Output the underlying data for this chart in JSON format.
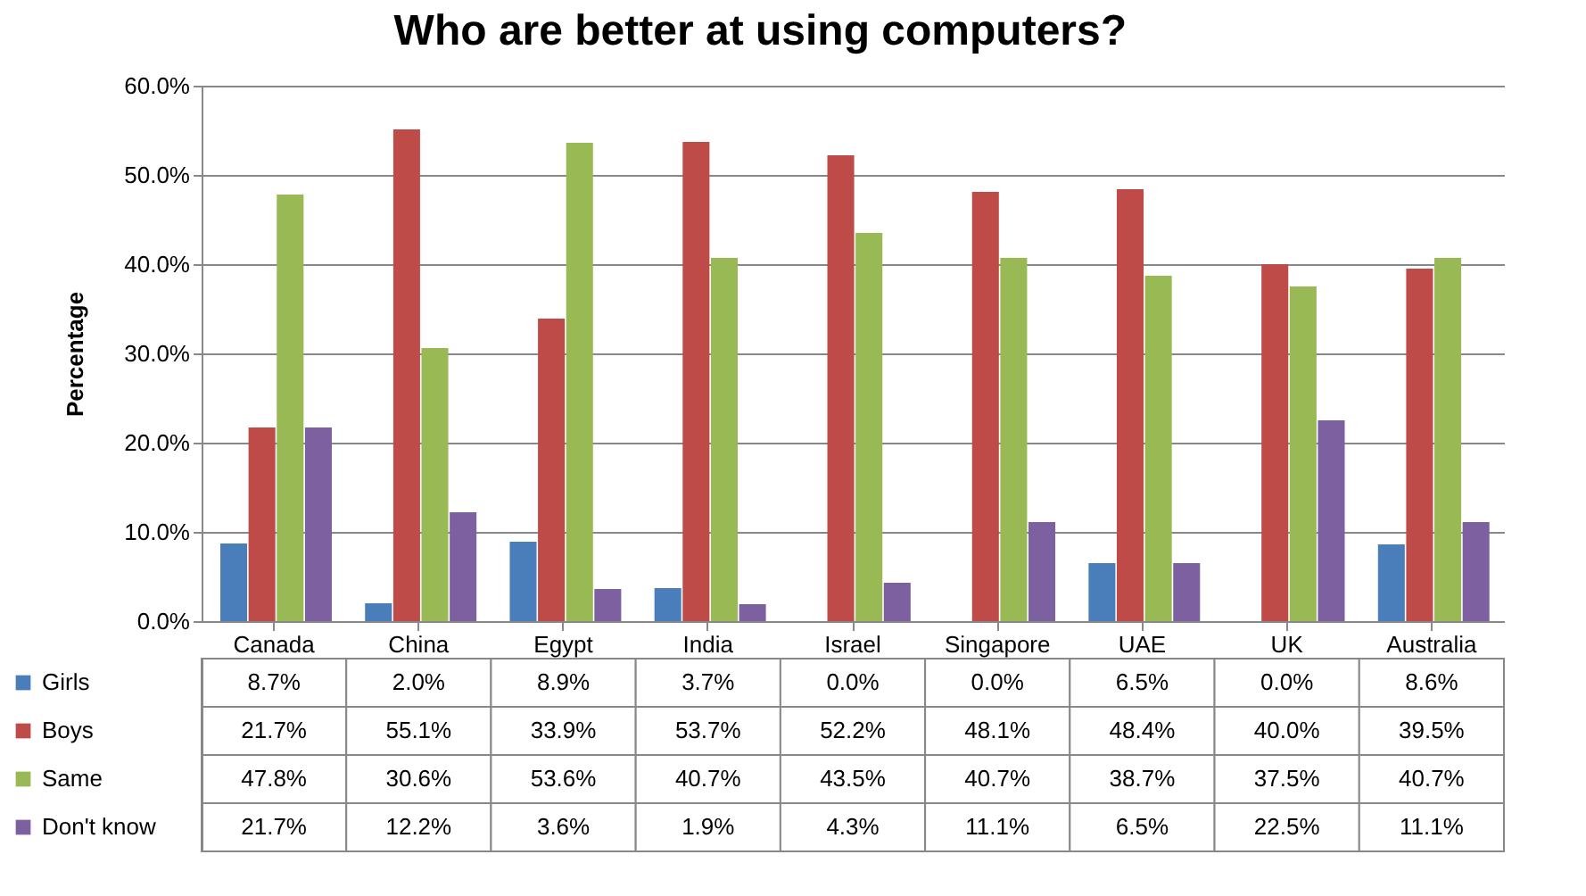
{
  "chart_data": {
    "type": "bar",
    "title": "Who are better at using computers?",
    "ylabel": "Percentage",
    "categories": [
      "Canada",
      "China",
      "Egypt",
      "India",
      "Israel",
      "Singapore",
      "UAE",
      "UK",
      "Australia"
    ],
    "series": [
      {
        "name": "Girls",
        "color": "#4a7ebb",
        "values": [
          8.7,
          2.0,
          8.9,
          3.7,
          0.0,
          0.0,
          6.5,
          0.0,
          8.6
        ],
        "value_labels": [
          "8.7%",
          "2.0%",
          "8.9%",
          "3.7%",
          "0.0%",
          "0.0%",
          "6.5%",
          "0.0%",
          "8.6%"
        ]
      },
      {
        "name": "Boys",
        "color": "#be4b48",
        "values": [
          21.7,
          55.1,
          33.9,
          53.7,
          52.2,
          48.1,
          48.4,
          40.0,
          39.5
        ],
        "value_labels": [
          "21.7%",
          "55.1%",
          "33.9%",
          "53.7%",
          "52.2%",
          "48.1%",
          "48.4%",
          "40.0%",
          "39.5%"
        ]
      },
      {
        "name": "Same",
        "color": "#98b954",
        "values": [
          47.8,
          30.6,
          53.6,
          40.7,
          43.5,
          40.7,
          38.7,
          37.5,
          40.7
        ],
        "value_labels": [
          "47.8%",
          "30.6%",
          "53.6%",
          "40.7%",
          "43.5%",
          "40.7%",
          "38.7%",
          "37.5%",
          "40.7%"
        ]
      },
      {
        "name": "Don't know",
        "color": "#7d60a0",
        "values": [
          21.7,
          12.2,
          3.6,
          1.9,
          4.3,
          11.1,
          6.5,
          22.5,
          11.1
        ],
        "value_labels": [
          "21.7%",
          "12.2%",
          "3.6%",
          "1.9%",
          "4.3%",
          "11.1%",
          "6.5%",
          "22.5%",
          "11.1%"
        ]
      }
    ],
    "ylim": [
      0,
      60
    ],
    "yticks": [
      {
        "value": 0,
        "label": "0.0%"
      },
      {
        "value": 10,
        "label": "10.0%"
      },
      {
        "value": 20,
        "label": "20.0%"
      },
      {
        "value": 30,
        "label": "30.0%"
      },
      {
        "value": 40,
        "label": "40.0%"
      },
      {
        "value": 50,
        "label": "50.0%"
      },
      {
        "value": 60,
        "label": "60.0%"
      }
    ],
    "grid": "y",
    "legend": "bottom left"
  }
}
